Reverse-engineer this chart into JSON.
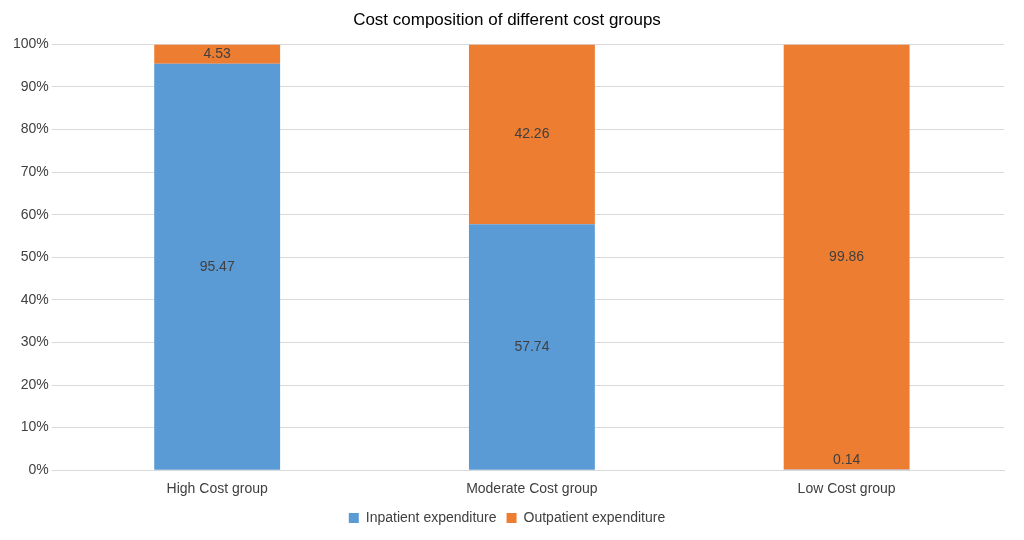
{
  "chart_data": {
    "type": "bar",
    "title": "Cost composition of different cost groups",
    "categories": [
      "High Cost group",
      "Moderate Cost group",
      "Low Cost group"
    ],
    "series": [
      {
        "name": "Inpatient expenditure",
        "color": "#5b9bd5",
        "values": [
          95.47,
          57.74,
          0.14
        ]
      },
      {
        "name": "Outpatient expenditure",
        "color": "#ed7d31",
        "values": [
          4.53,
          42.26,
          99.86
        ]
      }
    ],
    "stacked": true,
    "ylim": [
      0,
      100
    ],
    "yticks": [
      {
        "value": 0,
        "label": "0%"
      },
      {
        "value": 10,
        "label": "10%"
      },
      {
        "value": 20,
        "label": "20%"
      },
      {
        "value": 30,
        "label": "30%"
      },
      {
        "value": 40,
        "label": "40%"
      },
      {
        "value": 50,
        "label": "50%"
      },
      {
        "value": 60,
        "label": "60%"
      },
      {
        "value": 70,
        "label": "70%"
      },
      {
        "value": 80,
        "label": "80%"
      },
      {
        "value": 90,
        "label": "90%"
      },
      {
        "value": 100,
        "label": "100%"
      }
    ],
    "grid": "y",
    "legend": "bottom",
    "data_labels": true
  }
}
